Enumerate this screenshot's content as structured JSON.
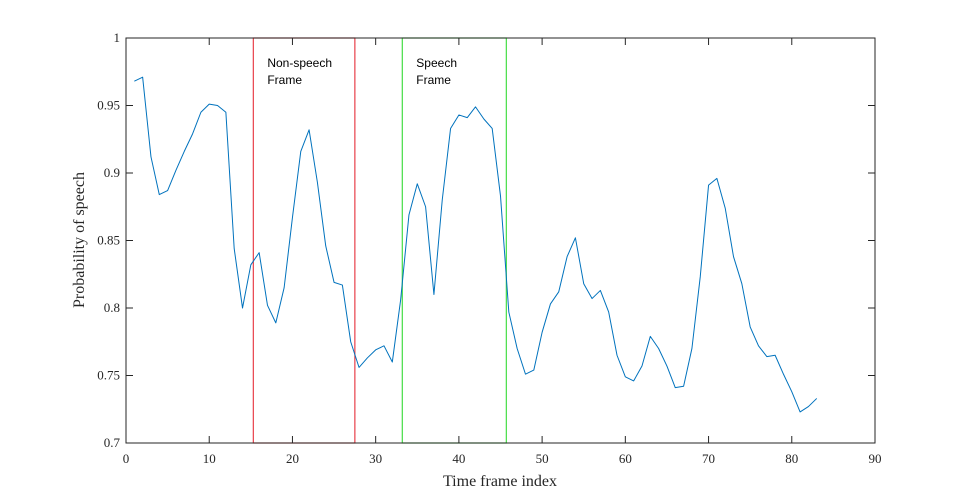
{
  "chart_data": {
    "type": "line",
    "xlabel": "Time frame index",
    "ylabel": "Probability of speech",
    "xlim": [
      0,
      90
    ],
    "ylim": [
      0.7,
      1.0
    ],
    "xticks": [
      "0",
      "10",
      "20",
      "30",
      "40",
      "50",
      "60",
      "70",
      "80",
      "90"
    ],
    "yticks": [
      "0.7",
      "0.75",
      "0.8",
      "0.85",
      "0.9",
      "0.95",
      "1"
    ],
    "grid": false,
    "series": [
      {
        "color": "#0072BD",
        "x": [
          1,
          2,
          3,
          4,
          5,
          6,
          7,
          8,
          9,
          10,
          11,
          12,
          13,
          14,
          15,
          16,
          17,
          18,
          19,
          20,
          21,
          22,
          23,
          24,
          25,
          26,
          27,
          28,
          29,
          30,
          31,
          32,
          33,
          34,
          35,
          36,
          37,
          38,
          39,
          40,
          41,
          42,
          43,
          44,
          45,
          46,
          47,
          48,
          49,
          50,
          51,
          52,
          53,
          54,
          55,
          56,
          57,
          58,
          59,
          60,
          61,
          62,
          63,
          64,
          65,
          66,
          67,
          68,
          69,
          70,
          71,
          72,
          73,
          74,
          75,
          76,
          77,
          78,
          79,
          80,
          81,
          82,
          83
        ],
        "y": [
          0.968,
          0.971,
          0.912,
          0.884,
          0.887,
          0.902,
          0.916,
          0.929,
          0.945,
          0.951,
          0.95,
          0.945,
          0.844,
          0.8,
          0.832,
          0.841,
          0.802,
          0.789,
          0.815,
          0.867,
          0.916,
          0.932,
          0.893,
          0.846,
          0.819,
          0.817,
          0.775,
          0.756,
          0.763,
          0.769,
          0.772,
          0.76,
          0.806,
          0.869,
          0.892,
          0.875,
          0.81,
          0.88,
          0.933,
          0.943,
          0.941,
          0.949,
          0.94,
          0.933,
          0.883,
          0.797,
          0.77,
          0.751,
          0.754,
          0.782,
          0.803,
          0.812,
          0.838,
          0.852,
          0.818,
          0.807,
          0.813,
          0.797,
          0.765,
          0.749,
          0.746,
          0.757,
          0.779,
          0.77,
          0.757,
          0.741,
          0.742,
          0.77,
          0.823,
          0.891,
          0.896,
          0.874,
          0.838,
          0.818,
          0.786,
          0.772,
          0.764,
          0.765,
          0.751,
          0.738,
          0.723,
          0.727,
          0.733
        ]
      }
    ],
    "annotations": [
      {
        "label_line1": "Non-speech",
        "label_line2": "Frame",
        "x_range": [
          15.3,
          27.5
        ],
        "y_range": [
          0.7,
          1.0
        ],
        "color": "#E8404A"
      },
      {
        "label_line1": "Speech",
        "label_line2": "Frame",
        "x_range": [
          33.2,
          45.7
        ],
        "y_range": [
          0.7,
          1.0
        ],
        "color": "#44DD44"
      }
    ]
  }
}
